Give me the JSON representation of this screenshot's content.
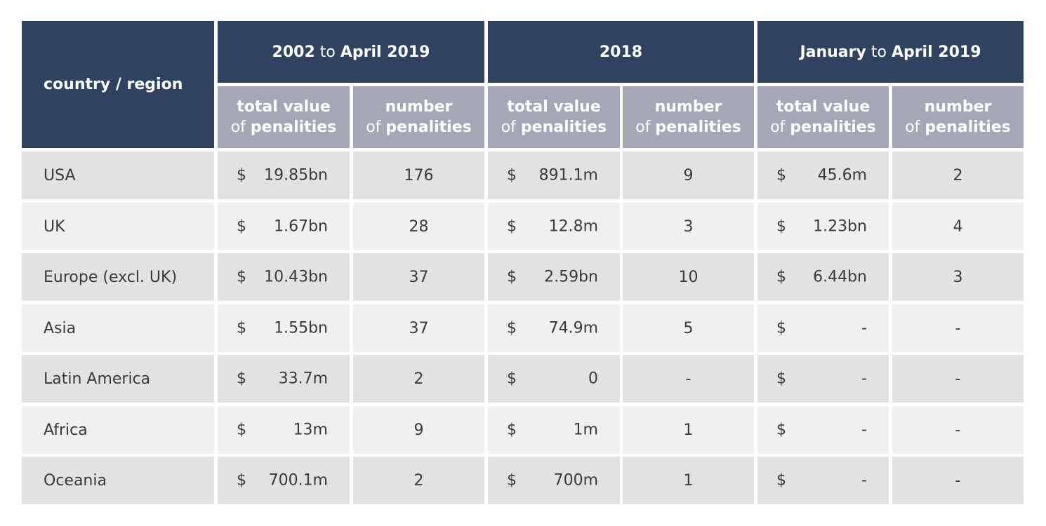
{
  "header": {
    "corner": "country / region",
    "groups": [
      {
        "a": "2002",
        "mid": " to ",
        "b": "April 2019"
      },
      {
        "a": "2018",
        "mid": "",
        "b": ""
      },
      {
        "a": "January",
        "mid": " to ",
        "b": "April 2019"
      }
    ],
    "sub": {
      "value_l1": "total value",
      "of": "of ",
      "value_l2": "penalities",
      "number_l1": "number",
      "number_l2": "penalities"
    }
  },
  "currency": "$",
  "rows": [
    {
      "region": "USA",
      "c": [
        "19.85bn",
        "176",
        "891.1m",
        "9",
        "45.6m",
        "2"
      ]
    },
    {
      "region": "UK",
      "c": [
        "1.67bn",
        "28",
        "12.8m",
        "3",
        "1.23bn",
        "4"
      ]
    },
    {
      "region": "Europe (excl. UK)",
      "c": [
        "10.43bn",
        "37",
        "2.59bn",
        "10",
        "6.44bn",
        "3"
      ]
    },
    {
      "region": "Asia",
      "c": [
        "1.55bn",
        "37",
        "74.9m",
        "5",
        "-",
        "-"
      ]
    },
    {
      "region": "Latin America",
      "c": [
        "33.7m",
        "2",
        "0",
        "-",
        "-",
        "-"
      ]
    },
    {
      "region": "Africa",
      "c": [
        "13m",
        "9",
        "1m",
        "1",
        "-",
        "-"
      ]
    },
    {
      "region": "Oceania",
      "c": [
        "700.1m",
        "2",
        "700m",
        "1",
        "-",
        "-"
      ]
    }
  ]
}
